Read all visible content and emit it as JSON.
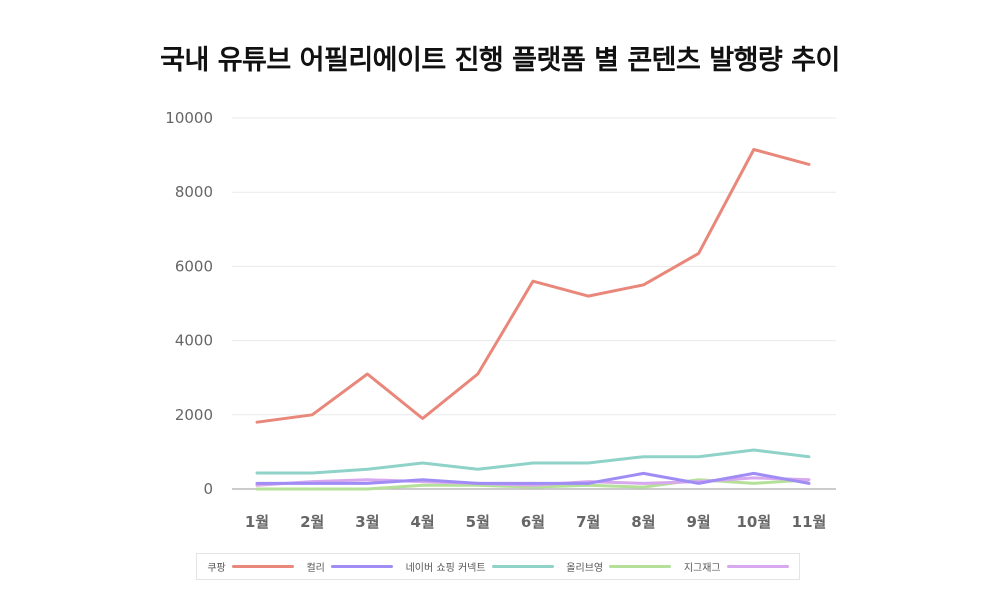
{
  "chart_data": {
    "type": "line",
    "title": "국내 유튜브 어필리에이트 진행 플랫폼 별 콘텐츠 발행량 추이",
    "categories": [
      "1월",
      "2월",
      "3월",
      "4월",
      "5월",
      "6월",
      "7월",
      "8월",
      "9월",
      "10월",
      "11월"
    ],
    "ylim": [
      0,
      10000
    ],
    "yticks": [
      "10000",
      "8000",
      "6000",
      "4000",
      "2000",
      "0"
    ],
    "yticks_values": [
      10000,
      8000,
      6000,
      4000,
      2000,
      0
    ],
    "series": [
      {
        "name": "쿠팡",
        "color": "#e8877a",
        "values": [
          1800,
          2000,
          3100,
          1900,
          3100,
          5600,
          5200,
          5500,
          6350,
          9150,
          8750
        ]
      },
      {
        "name": "컬리",
        "color": "#a08cf5",
        "values": [
          150,
          150,
          150,
          250,
          150,
          150,
          150,
          420,
          150,
          420,
          150
        ]
      },
      {
        "name": "네이버 쇼핑 커넥트",
        "color": "#8fd3c8",
        "values": [
          430,
          430,
          530,
          700,
          530,
          700,
          700,
          870,
          870,
          1050,
          870
        ]
      },
      {
        "name": "올리브영",
        "color": "#b5e09a",
        "values": [
          0,
          0,
          0,
          100,
          100,
          50,
          100,
          50,
          250,
          150,
          250
        ]
      },
      {
        "name": "지그재그",
        "color": "#d8a8ee",
        "values": [
          100,
          200,
          250,
          200,
          150,
          100,
          200,
          150,
          200,
          300,
          250
        ]
      }
    ]
  }
}
